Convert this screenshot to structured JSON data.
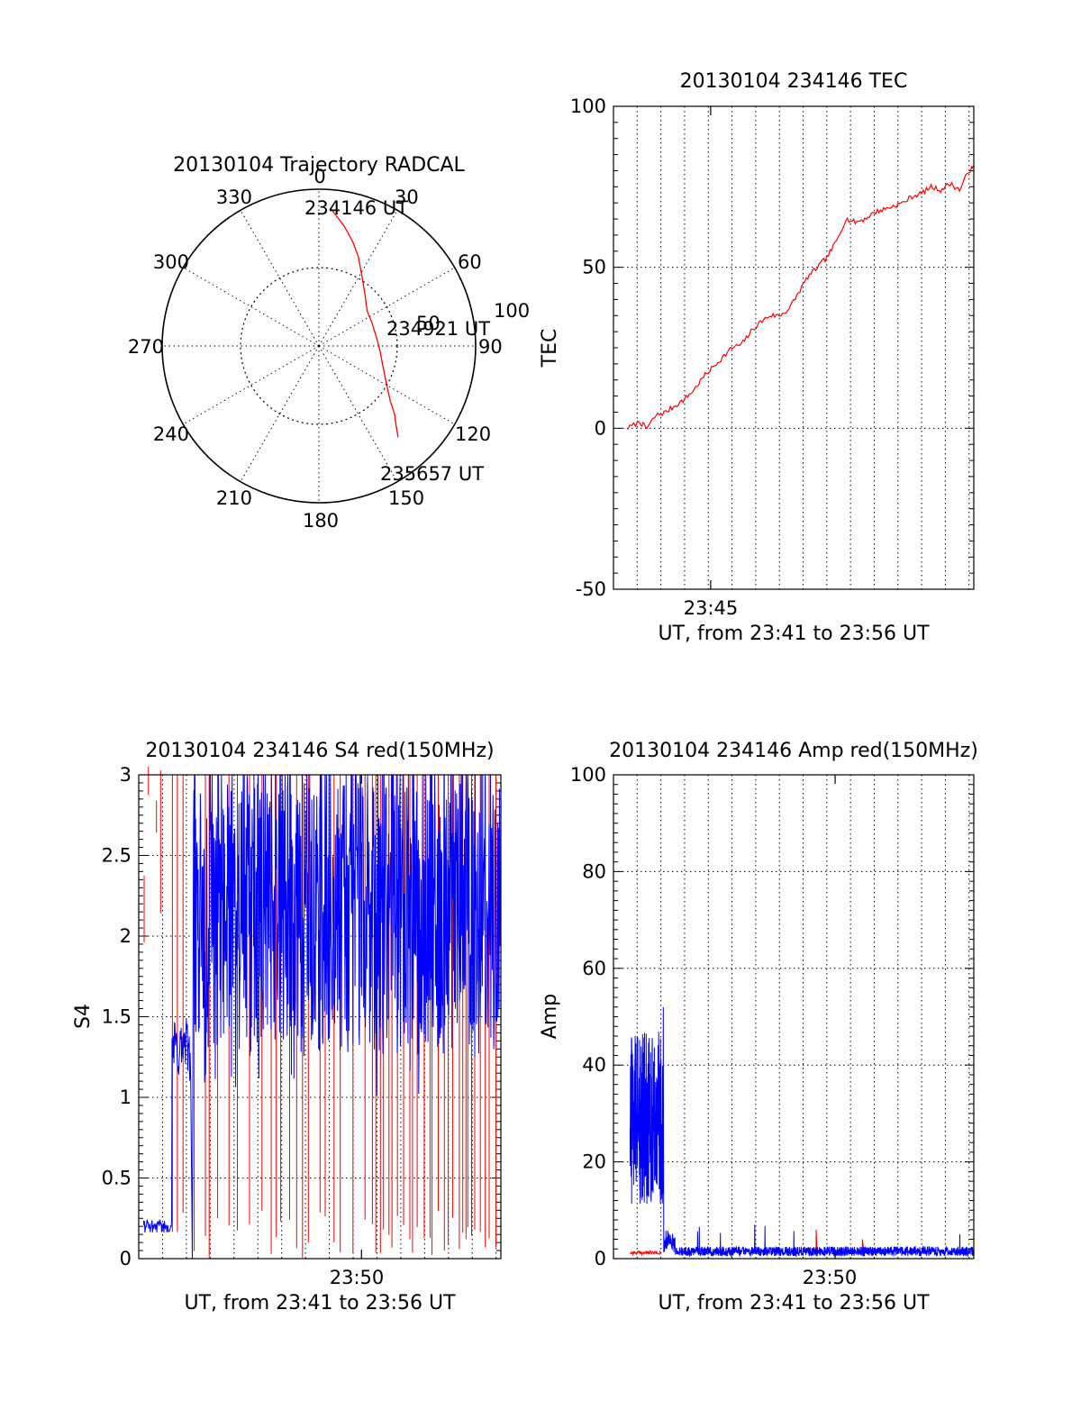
{
  "colors": {
    "red": "#ff0000",
    "blue": "#0000ff",
    "axis": "#000000"
  },
  "chart_data": [
    {
      "id": "trajectory",
      "type": "polar",
      "title": "20130104 Trajectory RADCAL",
      "angle_ticks": [
        0,
        30,
        60,
        90,
        120,
        150,
        180,
        210,
        240,
        270,
        300,
        330
      ],
      "radial_ticks": [
        50,
        100
      ],
      "radial_max": 100,
      "series": [
        {
          "color": "red",
          "points": [
            [
              5,
              88
            ],
            [
              12,
              78
            ],
            [
              18,
              70
            ],
            [
              24,
              62
            ],
            [
              32,
              52
            ],
            [
              42,
              44
            ],
            [
              54,
              38
            ],
            [
              66,
              37
            ],
            [
              80,
              37
            ],
            [
              94,
              39
            ],
            [
              108,
              43
            ],
            [
              120,
              50
            ],
            [
              128,
              58
            ],
            [
              132,
              65
            ],
            [
              136,
              71
            ],
            [
              139,
              77
            ]
          ]
        }
      ],
      "annotations": [
        {
          "text": "234146 UT",
          "at": [
            5,
            88
          ]
        },
        {
          "text": "234921 UT",
          "at": [
            82,
            37
          ]
        },
        {
          "text": "235657 UT",
          "at": [
            139,
            77
          ]
        }
      ]
    },
    {
      "id": "tec",
      "type": "line",
      "title": "20130104 234146 TEC",
      "ylabel": "TEC",
      "xlabel": "UT, from 23:41 to 23:56 UT",
      "x_tick_labels": [
        "23:45"
      ],
      "x_range_minutes": [
        0,
        15.2
      ],
      "ylim": [
        -50,
        100
      ],
      "y_ticks": [
        -50,
        0,
        50,
        100
      ],
      "series": [
        {
          "color": "red",
          "x": [
            0.6,
            1.1,
            1.4,
            1.8,
            2.2,
            2.6,
            3.0,
            3.4,
            3.8,
            4.2,
            4.6,
            5.0,
            5.4,
            5.8,
            6.2,
            6.6,
            7.0,
            7.4,
            7.8,
            8.2,
            8.6,
            9.0,
            9.4,
            9.8,
            10.2,
            10.6,
            11.0,
            11.4,
            11.8,
            12.2,
            12.6,
            13.0,
            13.4,
            13.8,
            14.2,
            14.6,
            15.0,
            15.2
          ],
          "y": [
            0,
            2,
            0,
            4,
            5,
            7,
            9,
            12,
            16,
            19,
            22,
            25,
            26,
            30,
            33,
            35,
            35,
            37,
            42,
            47,
            50,
            53,
            58,
            65,
            64,
            65,
            67,
            68,
            69,
            70,
            72,
            73,
            75,
            74,
            76,
            74,
            80,
            81
          ]
        }
      ]
    },
    {
      "id": "s4",
      "type": "line",
      "title": "20130104 234146 S4 red(150MHz)",
      "ylabel": "S4",
      "xlabel": "UT, from 23:41 to 23:56 UT",
      "x_tick_labels": [
        "23:50"
      ],
      "x_range_minutes": [
        0,
        15.2
      ],
      "ylim": [
        0,
        3
      ],
      "y_ticks": [
        0,
        0.5,
        1,
        1.5,
        2,
        2.5,
        3
      ],
      "series": [
        {
          "color": "red",
          "name": ""
        },
        {
          "color": "blue",
          "name": ""
        }
      ]
    },
    {
      "id": "amp",
      "type": "line",
      "title": "20130104 234146 Amp red(150MHz)",
      "ylabel": "Amp",
      "xlabel": "UT, from 23:41 to 23:56 UT",
      "x_tick_labels": [
        "23:50"
      ],
      "x_range_minutes": [
        0,
        15.2
      ],
      "ylim": [
        0,
        100
      ],
      "y_ticks": [
        0,
        20,
        40,
        60,
        80,
        100
      ],
      "series": [
        {
          "color": "red",
          "name": ""
        },
        {
          "color": "blue",
          "name": ""
        }
      ]
    }
  ]
}
